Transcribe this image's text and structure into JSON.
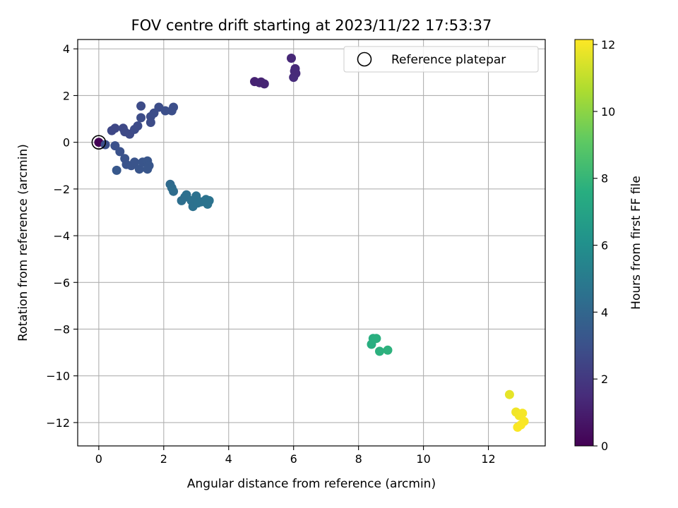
{
  "chart_data": {
    "type": "scatter",
    "title": "FOV centre drift starting at 2023/11/22 17:53:37",
    "xlabel": "Angular distance from reference (arcmin)",
    "ylabel": "Rotation from reference (arcmin)",
    "xlim": [
      -0.65,
      13.75
    ],
    "ylim": [
      -13.0,
      4.4
    ],
    "xticks": [
      0,
      2,
      4,
      6,
      8,
      10,
      12
    ],
    "yticks": [
      4,
      2,
      0,
      -2,
      -4,
      -6,
      -8,
      -10,
      -12
    ],
    "xtick_labels": [
      "0",
      "2",
      "4",
      "6",
      "8",
      "10",
      "12"
    ],
    "ytick_labels": [
      "4",
      "2",
      "0",
      "−2",
      "−4",
      "−6",
      "−8",
      "−10",
      "−12"
    ],
    "grid": true,
    "legend": {
      "position": "top-right",
      "entries": [
        "Reference platepar"
      ]
    },
    "colorbar": {
      "label": "Hours from first FF file",
      "range": [
        0,
        12.15
      ],
      "ticks": [
        0,
        2,
        4,
        6,
        8,
        10,
        12
      ],
      "tick_labels": [
        "0",
        "2",
        "4",
        "6",
        "8",
        "10",
        "12"
      ],
      "colormap": "viridis"
    },
    "reference_point": {
      "x": 0,
      "y": 0
    },
    "points": [
      {
        "x": 0.0,
        "y": 0.0,
        "c": 0.05
      },
      {
        "x": 4.8,
        "y": 2.6,
        "c": 1.15
      },
      {
        "x": 5.0,
        "y": 2.58,
        "c": 1.2
      },
      {
        "x": 5.1,
        "y": 2.5,
        "c": 1.25
      },
      {
        "x": 4.95,
        "y": 2.55,
        "c": 1.2
      },
      {
        "x": 5.93,
        "y": 3.6,
        "c": 1.35
      },
      {
        "x": 6.05,
        "y": 3.15,
        "c": 1.4
      },
      {
        "x": 6.07,
        "y": 2.95,
        "c": 1.45
      },
      {
        "x": 6.0,
        "y": 2.78,
        "c": 1.5
      },
      {
        "x": 6.03,
        "y": 3.05,
        "c": 1.45
      },
      {
        "x": 0.4,
        "y": 0.5,
        "c": 2.6
      },
      {
        "x": 0.5,
        "y": 0.6,
        "c": 2.6
      },
      {
        "x": 0.75,
        "y": 0.6,
        "c": 2.65
      },
      {
        "x": 0.8,
        "y": 0.45,
        "c": 2.7
      },
      {
        "x": 0.95,
        "y": 0.35,
        "c": 2.7
      },
      {
        "x": 1.1,
        "y": 0.55,
        "c": 2.75
      },
      {
        "x": 1.2,
        "y": 0.7,
        "c": 2.75
      },
      {
        "x": 1.3,
        "y": 1.05,
        "c": 2.8
      },
      {
        "x": 1.3,
        "y": 1.55,
        "c": 2.8
      },
      {
        "x": 1.6,
        "y": 0.85,
        "c": 2.8
      },
      {
        "x": 1.6,
        "y": 1.1,
        "c": 2.8
      },
      {
        "x": 1.7,
        "y": 1.25,
        "c": 2.85
      },
      {
        "x": 1.85,
        "y": 1.5,
        "c": 2.85
      },
      {
        "x": 2.05,
        "y": 1.35,
        "c": 2.9
      },
      {
        "x": 2.25,
        "y": 1.35,
        "c": 2.9
      },
      {
        "x": 2.3,
        "y": 1.5,
        "c": 2.9
      },
      {
        "x": 0.2,
        "y": -0.1,
        "c": 2.95
      },
      {
        "x": 0.5,
        "y": -0.15,
        "c": 3.0
      },
      {
        "x": 0.65,
        "y": -0.4,
        "c": 3.05
      },
      {
        "x": 0.8,
        "y": -0.7,
        "c": 3.1
      },
      {
        "x": 0.85,
        "y": -0.95,
        "c": 3.1
      },
      {
        "x": 1.0,
        "y": -1.0,
        "c": 3.15
      },
      {
        "x": 1.1,
        "y": -0.85,
        "c": 3.15
      },
      {
        "x": 1.25,
        "y": -1.15,
        "c": 3.2
      },
      {
        "x": 1.35,
        "y": -0.85,
        "c": 3.2
      },
      {
        "x": 1.5,
        "y": -0.8,
        "c": 3.25
      },
      {
        "x": 1.55,
        "y": -1.0,
        "c": 3.25
      },
      {
        "x": 1.5,
        "y": -1.15,
        "c": 3.25
      },
      {
        "x": 0.55,
        "y": -1.2,
        "c": 3.3
      },
      {
        "x": 2.2,
        "y": -1.8,
        "c": 4.2
      },
      {
        "x": 2.25,
        "y": -1.95,
        "c": 4.25
      },
      {
        "x": 2.3,
        "y": -2.1,
        "c": 4.3
      },
      {
        "x": 2.55,
        "y": -2.5,
        "c": 4.4
      },
      {
        "x": 2.65,
        "y": -2.35,
        "c": 4.4
      },
      {
        "x": 2.7,
        "y": -2.25,
        "c": 4.45
      },
      {
        "x": 2.85,
        "y": -2.5,
        "c": 4.5
      },
      {
        "x": 2.9,
        "y": -2.75,
        "c": 4.5
      },
      {
        "x": 3.0,
        "y": -2.3,
        "c": 4.5
      },
      {
        "x": 3.05,
        "y": -2.6,
        "c": 4.55
      },
      {
        "x": 3.15,
        "y": -2.55,
        "c": 4.55
      },
      {
        "x": 3.3,
        "y": -2.45,
        "c": 4.6
      },
      {
        "x": 3.4,
        "y": -2.5,
        "c": 4.6
      },
      {
        "x": 3.35,
        "y": -2.65,
        "c": 4.6
      },
      {
        "x": 8.4,
        "y": -8.65,
        "c": 7.6
      },
      {
        "x": 8.45,
        "y": -8.4,
        "c": 7.6
      },
      {
        "x": 8.55,
        "y": -8.4,
        "c": 7.65
      },
      {
        "x": 8.65,
        "y": -8.95,
        "c": 7.7
      },
      {
        "x": 8.9,
        "y": -8.9,
        "c": 7.75
      },
      {
        "x": 12.65,
        "y": -10.8,
        "c": 11.7
      },
      {
        "x": 12.85,
        "y": -11.55,
        "c": 11.9
      },
      {
        "x": 12.95,
        "y": -11.7,
        "c": 11.95
      },
      {
        "x": 13.05,
        "y": -11.6,
        "c": 12.0
      },
      {
        "x": 13.1,
        "y": -11.95,
        "c": 12.05
      },
      {
        "x": 12.9,
        "y": -12.2,
        "c": 12.1
      },
      {
        "x": 13.0,
        "y": -12.1,
        "c": 12.1
      }
    ]
  }
}
